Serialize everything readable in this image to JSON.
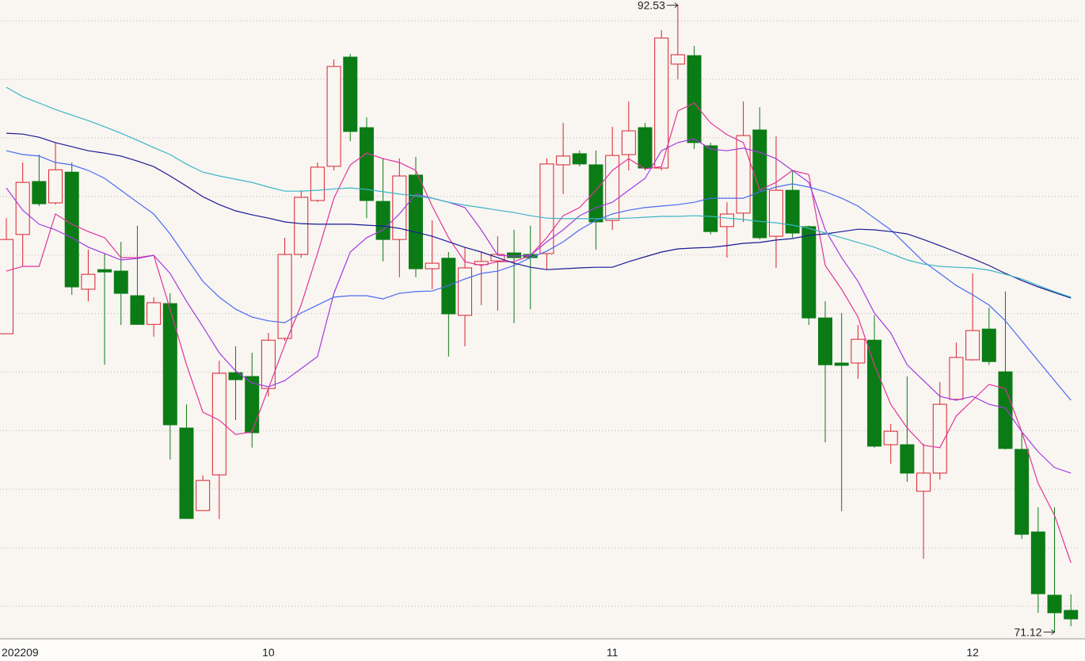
{
  "chart_data": {
    "type": "candlestick",
    "categories": [
      "202209",
      null,
      null,
      null,
      null,
      null,
      null,
      null,
      null,
      null,
      null,
      null,
      null,
      null,
      null,
      null,
      "10",
      null,
      null,
      null,
      null,
      null,
      null,
      null,
      null,
      null,
      null,
      null,
      null,
      null,
      null,
      null,
      null,
      null,
      null,
      null,
      null,
      "11",
      null,
      null,
      null,
      null,
      null,
      null,
      null,
      null,
      null,
      null,
      null,
      null,
      null,
      null,
      null,
      null,
      null,
      null,
      null,
      null,
      null,
      "12",
      null,
      null,
      null,
      null,
      null,
      null
    ],
    "open": [
      81.31,
      84.7,
      86.51,
      85.78,
      86.83,
      82.83,
      83.5,
      83.45,
      82.61,
      81.63,
      82.34,
      78.09,
      75.27,
      76.49,
      79.98,
      79.85,
      79.44,
      81.15,
      84.02,
      85.86,
      87.03,
      90.76,
      88.35,
      85.83,
      84.53,
      86.73,
      83.53,
      83.89,
      81.94,
      83.67,
      83.8,
      84.07,
      84.02,
      84.05,
      87.08,
      87.46,
      87.08,
      85.18,
      87.43,
      88.35,
      86.97,
      90.52,
      90.81,
      87.73,
      84.97,
      85.43,
      88.27,
      84.64,
      86.21,
      84.97,
      81.85,
      80.31,
      80.31,
      81.09,
      77.52,
      77.52,
      75.93,
      76.55,
      79.07,
      80.42,
      81.47,
      80.01,
      77.36,
      74.54,
      72.38,
      71.86
    ],
    "high": [
      85.26,
      87.16,
      87.43,
      87.84,
      87.16,
      84.18,
      84.04,
      84.45,
      85.0,
      82.56,
      82.69,
      78.9,
      76.47,
      80.39,
      80.88,
      80.66,
      81.34,
      84.59,
      86.21,
      87.16,
      90.68,
      90.87,
      88.7,
      87.3,
      87.3,
      87.35,
      85.18,
      84.1,
      84.26,
      84.1,
      84.64,
      84.86,
      85.0,
      87.3,
      88.51,
      87.57,
      87.57,
      88.38,
      89.24,
      88.51,
      91.68,
      92.53,
      91.14,
      87.84,
      85.8,
      89.24,
      89.05,
      88.05,
      86.89,
      85.0,
      82.42,
      82.02,
      81.61,
      81.94,
      78.23,
      79.85,
      77.55,
      79.66,
      81.01,
      83.37,
      82.2,
      82.75,
      77.95,
      75.38,
      75.38,
      72.41
    ],
    "low": [
      81.31,
      83.61,
      85.67,
      85.72,
      82.64,
      82.42,
      80.25,
      81.61,
      81.61,
      81.21,
      77.01,
      75.0,
      75.25,
      74.98,
      78.36,
      77.42,
      79.17,
      81.07,
      83.91,
      85.81,
      86.89,
      87.89,
      85.26,
      83.78,
      83.24,
      83.24,
      82.83,
      80.53,
      80.88,
      82.29,
      82.1,
      81.67,
      82.15,
      83.5,
      86.08,
      87.03,
      84.18,
      84.86,
      86.89,
      86.89,
      86.89,
      90.0,
      87.62,
      84.7,
      83.91,
      85.13,
      84.53,
      83.56,
      84.59,
      81.61,
      77.6,
      75.25,
      79.77,
      77.42,
      76.87,
      76.25,
      73.62,
      76.33,
      79.04,
      80.39,
      80.25,
      77.36,
      74.3,
      71.78,
      71.12,
      71.32
    ],
    "close": [
      84.53,
      86.48,
      85.75,
      86.91,
      82.91,
      83.34,
      83.42,
      82.69,
      81.63,
      82.37,
      78.2,
      75.0,
      76.3,
      79.96,
      79.74,
      77.93,
      81.09,
      84.02,
      85.97,
      87.0,
      90.44,
      88.22,
      85.86,
      84.53,
      86.7,
      83.53,
      83.72,
      81.99,
      83.56,
      83.78,
      84.02,
      83.91,
      83.91,
      87.11,
      87.38,
      87.11,
      85.13,
      87.4,
      88.24,
      86.97,
      91.41,
      90.84,
      87.84,
      84.8,
      85.4,
      88.08,
      84.59,
      86.21,
      84.75,
      81.85,
      80.25,
      80.23,
      81.12,
      77.47,
      77.98,
      76.55,
      76.55,
      78.9,
      80.5,
      81.42,
      80.36,
      77.39,
      74.46,
      72.43,
      71.78,
      71.57
    ],
    "up_color": "#d8232e",
    "down_color": "#0b7c15",
    "background": "#f9f5f1",
    "lines": [
      {
        "color": "#e0359a",
        "values": [
          83.45,
          83.61,
          83.61,
          85.4,
          85.05,
          84.8,
          84.59,
          83.91,
          83.91,
          83.99,
          82.15,
          80.25,
          78.63,
          78.36,
          77.87,
          77.96,
          79.44,
          80.93,
          82.29,
          84.05,
          85.94,
          87.08,
          87.48,
          87.29,
          87.16,
          86.89,
          85.67,
          84.59,
          83.77,
          83.64,
          83.77,
          83.77,
          83.99,
          84.59,
          85.34,
          85.62,
          86.21,
          86.89,
          87.29,
          86.94,
          87.02,
          88.92,
          89.19,
          88.51,
          88.11,
          87.84,
          86.21,
          86.48,
          86.89,
          86.75,
          83.64,
          82.83,
          81.88,
          80.25,
          78.9,
          78.09,
          77.5,
          77.42,
          78.5,
          79.04,
          79.58,
          79.44,
          77.96,
          76.2,
          75.11,
          73.49
        ]
      },
      {
        "color": "#a23be0",
        "values": [
          86.29,
          85.53,
          85.05,
          84.86,
          84.59,
          84.27,
          84.05,
          83.83,
          83.88,
          83.99,
          83.37,
          82.42,
          81.55,
          80.66,
          80.04,
          79.63,
          79.5,
          79.71,
          80.12,
          80.53,
          82.69,
          84.1,
          84.59,
          84.86,
          85.4,
          86.08,
          85.94,
          85.8,
          85.62,
          84.86,
          83.99,
          83.96,
          83.99,
          84.45,
          84.86,
          85.34,
          85.62,
          85.8,
          86.21,
          86.62,
          87.56,
          87.84,
          87.97,
          87.62,
          87.56,
          87.65,
          87.51,
          87.29,
          86.89,
          86.48,
          84.86,
          83.91,
          83.1,
          82.02,
          81.34,
          80.25,
          79.71,
          79.17,
          79.04,
          79.17,
          78.9,
          78.77,
          77.96,
          77.28,
          76.74,
          76.55
        ]
      },
      {
        "color": "#4a6cf0",
        "values": [
          87.56,
          87.43,
          87.38,
          87.16,
          87.08,
          86.89,
          86.62,
          86.21,
          85.8,
          85.4,
          84.72,
          83.91,
          83.1,
          82.56,
          82.15,
          81.88,
          81.75,
          81.69,
          82.02,
          82.29,
          82.56,
          82.61,
          82.61,
          82.5,
          82.69,
          82.75,
          82.77,
          82.96,
          83.18,
          83.37,
          83.45,
          83.64,
          83.91,
          84.13,
          84.45,
          84.86,
          85.18,
          85.4,
          85.53,
          85.62,
          85.67,
          85.72,
          85.8,
          85.94,
          85.94,
          85.94,
          86.16,
          86.32,
          86.43,
          86.32,
          86.16,
          85.94,
          85.67,
          85.26,
          84.86,
          84.32,
          83.77,
          83.37,
          82.96,
          82.64,
          82.29,
          81.75,
          81.07,
          80.39,
          79.71,
          79.04
        ]
      },
      {
        "color": "#1a1a96",
        "values": [
          88.16,
          88.13,
          88.02,
          87.84,
          87.7,
          87.56,
          87.48,
          87.38,
          87.21,
          87.02,
          86.7,
          86.35,
          85.99,
          85.72,
          85.51,
          85.37,
          85.26,
          85.13,
          85.07,
          85.05,
          85.05,
          85.05,
          85.02,
          84.99,
          84.91,
          84.78,
          84.64,
          84.45,
          84.26,
          84.1,
          83.91,
          83.72,
          83.58,
          83.5,
          83.53,
          83.56,
          83.58,
          83.58,
          83.77,
          83.94,
          84.1,
          84.21,
          84.24,
          84.26,
          84.32,
          84.4,
          84.43,
          84.51,
          84.56,
          84.67,
          84.72,
          84.8,
          84.88,
          84.86,
          84.8,
          84.72,
          84.53,
          84.32,
          84.1,
          83.88,
          83.64,
          83.37,
          83.13,
          82.91,
          82.72,
          82.53
        ]
      },
      {
        "color": "#3ab6c6",
        "values": [
          89.73,
          89.41,
          89.19,
          88.97,
          88.78,
          88.59,
          88.38,
          88.16,
          87.92,
          87.67,
          87.43,
          87.1,
          86.83,
          86.7,
          86.59,
          86.48,
          86.32,
          86.18,
          86.18,
          86.21,
          86.26,
          86.29,
          86.24,
          86.16,
          86.08,
          86.02,
          85.94,
          85.8,
          85.7,
          85.62,
          85.53,
          85.45,
          85.34,
          85.26,
          85.24,
          85.24,
          85.24,
          85.24,
          85.26,
          85.29,
          85.32,
          85.32,
          85.34,
          85.32,
          85.26,
          85.21,
          85.15,
          85.1,
          85.02,
          84.91,
          84.75,
          84.59,
          84.43,
          84.27,
          84.05,
          83.83,
          83.69,
          83.61,
          83.58,
          83.56,
          83.48,
          83.34,
          83.18,
          82.96,
          82.75,
          82.56
        ]
      }
    ],
    "ylim": [
      70.89,
      92.71
    ],
    "yticks": [
      72,
      74,
      76,
      78,
      80,
      82,
      84,
      86,
      88,
      90,
      92
    ],
    "grid": true
  }
}
